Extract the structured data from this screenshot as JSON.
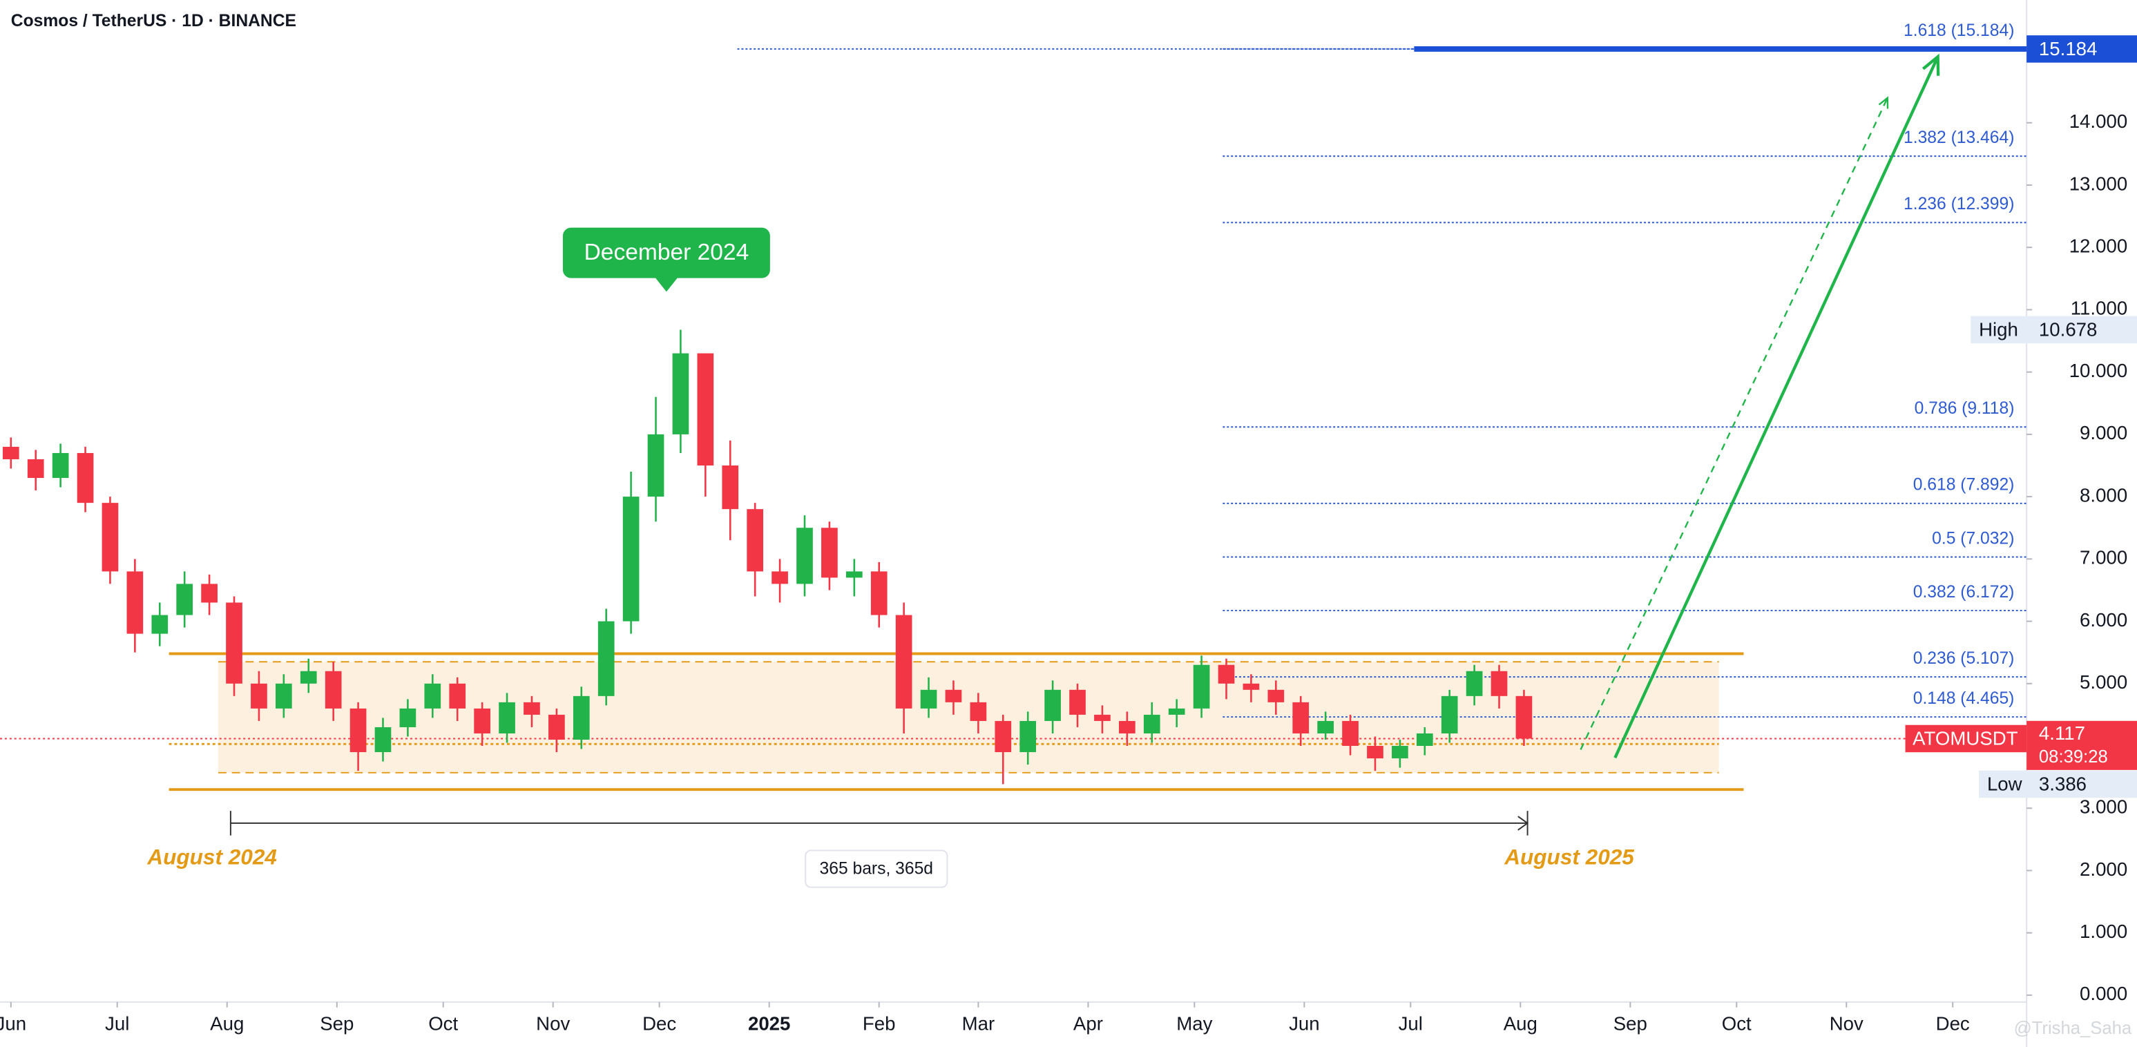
{
  "chart_data": {
    "type": "candlestick",
    "title": "Cosmos / TetherUS · 1D · BINANCE",
    "watermark": "@Trisha_Saha",
    "up_color": "#22b34a",
    "down_color": "#f23645",
    "xlim": [
      -3.08,
      568.85
    ],
    "ylim": [
      -0.11,
      15.97
    ],
    "grid": false,
    "xticks": [
      {
        "value": 0,
        "label": "Jun"
      },
      {
        "value": 30,
        "label": "Jul"
      },
      {
        "value": 61,
        "label": "Aug"
      },
      {
        "value": 92,
        "label": "Sep"
      },
      {
        "value": 122,
        "label": "Oct"
      },
      {
        "value": 153,
        "label": "Nov"
      },
      {
        "value": 183,
        "label": "Dec"
      },
      {
        "value": 214,
        "label": "2025",
        "bold": true
      },
      {
        "value": 245,
        "label": "Feb"
      },
      {
        "value": 273,
        "label": "Mar"
      },
      {
        "value": 304,
        "label": "Apr"
      },
      {
        "value": 334,
        "label": "May"
      },
      {
        "value": 365,
        "label": "Jun"
      },
      {
        "value": 395,
        "label": "Jul"
      },
      {
        "value": 426,
        "label": "Aug"
      },
      {
        "value": 457,
        "label": "Sep"
      },
      {
        "value": 487,
        "label": "Oct"
      },
      {
        "value": 518,
        "label": "Nov"
      },
      {
        "value": 548,
        "label": "Dec"
      }
    ],
    "yticks": [
      {
        "value": 0,
        "label": "0.000"
      },
      {
        "value": 1,
        "label": "1.000"
      },
      {
        "value": 2,
        "label": "2.000"
      },
      {
        "value": 3,
        "label": "3.000"
      },
      {
        "value": 5,
        "label": "5.000"
      },
      {
        "value": 6,
        "label": "6.000"
      },
      {
        "value": 7,
        "label": "7.000"
      },
      {
        "value": 8,
        "label": "8.000"
      },
      {
        "value": 9,
        "label": "9.000"
      },
      {
        "value": 10,
        "label": "10.000"
      },
      {
        "value": 11,
        "label": "11.000"
      },
      {
        "value": 12,
        "label": "12.000"
      },
      {
        "value": 13,
        "label": "13.000"
      },
      {
        "value": 14,
        "label": "14.000"
      }
    ],
    "candles": {
      "x": [
        0,
        7,
        14,
        21,
        28,
        35,
        42,
        49,
        56,
        63,
        70,
        77,
        84,
        91,
        98,
        105,
        112,
        119,
        126,
        133,
        140,
        147,
        154,
        161,
        168,
        175,
        182,
        189,
        196,
        203,
        210,
        217,
        224,
        231,
        238,
        245,
        252,
        259,
        266,
        273,
        280,
        287,
        294,
        301,
        308,
        315,
        322,
        329,
        336,
        343,
        350,
        357,
        364,
        371,
        378,
        385,
        392,
        399,
        406,
        413,
        420,
        427
      ],
      "open": [
        8.8,
        8.6,
        8.3,
        8.7,
        7.9,
        6.8,
        5.8,
        6.1,
        6.6,
        6.3,
        5.0,
        4.6,
        5.0,
        5.2,
        4.6,
        3.9,
        4.3,
        4.6,
        5.0,
        4.6,
        4.2,
        4.7,
        4.5,
        4.1,
        4.8,
        6.0,
        8.0,
        9.0,
        10.3,
        8.5,
        7.8,
        6.8,
        6.6,
        7.5,
        6.7,
        6.8,
        6.1,
        4.6,
        4.9,
        4.7,
        4.4,
        3.9,
        4.4,
        4.9,
        4.5,
        4.4,
        4.2,
        4.5,
        4.6,
        5.3,
        5.0,
        4.9,
        4.7,
        4.2,
        4.4,
        4.0,
        3.8,
        4.0,
        4.2,
        4.8,
        5.2,
        4.8
      ],
      "high": [
        8.95,
        8.75,
        8.85,
        8.8,
        8.0,
        7.0,
        6.3,
        6.8,
        6.75,
        6.4,
        5.2,
        5.15,
        5.4,
        5.35,
        4.7,
        4.45,
        4.75,
        5.15,
        5.1,
        4.7,
        4.85,
        4.8,
        4.6,
        4.95,
        6.2,
        8.4,
        9.6,
        10.678,
        10.1,
        8.9,
        7.9,
        7.0,
        7.7,
        7.6,
        7.0,
        6.95,
        6.3,
        5.1,
        5.05,
        4.85,
        4.5,
        4.55,
        5.05,
        5.0,
        4.65,
        4.55,
        4.7,
        4.75,
        5.45,
        5.4,
        5.15,
        5.05,
        4.8,
        4.55,
        4.5,
        4.15,
        4.1,
        4.3,
        4.9,
        5.3,
        5.3,
        4.9
      ],
      "low": [
        8.45,
        8.1,
        8.15,
        7.75,
        6.6,
        5.5,
        5.6,
        5.9,
        6.1,
        4.8,
        4.4,
        4.45,
        4.85,
        4.4,
        3.6,
        3.75,
        4.15,
        4.45,
        4.4,
        4.0,
        4.05,
        4.3,
        3.9,
        3.95,
        4.65,
        5.8,
        7.6,
        8.7,
        8.0,
        7.3,
        6.4,
        6.3,
        6.4,
        6.5,
        6.4,
        5.9,
        4.2,
        4.45,
        4.5,
        4.2,
        3.386,
        3.7,
        4.2,
        4.3,
        4.2,
        4.0,
        4.05,
        4.3,
        4.45,
        4.75,
        4.7,
        4.5,
        4.0,
        4.1,
        3.85,
        3.6,
        3.65,
        3.85,
        4.05,
        4.65,
        4.6,
        4.0
      ],
      "close": [
        8.6,
        8.3,
        8.7,
        7.9,
        6.8,
        5.8,
        6.1,
        6.6,
        6.3,
        5.0,
        4.6,
        5.0,
        5.2,
        4.6,
        3.9,
        4.3,
        4.6,
        5.0,
        4.6,
        4.2,
        4.7,
        4.5,
        4.1,
        4.8,
        6.0,
        8.0,
        9.0,
        10.3,
        8.5,
        7.8,
        6.8,
        6.6,
        7.5,
        6.7,
        6.8,
        6.1,
        4.6,
        4.9,
        4.7,
        4.4,
        3.9,
        4.4,
        4.9,
        4.5,
        4.4,
        4.2,
        4.5,
        4.6,
        5.3,
        5.0,
        4.9,
        4.7,
        4.2,
        4.4,
        4.0,
        3.8,
        4.0,
        4.2,
        4.8,
        5.2,
        4.8,
        4.117
      ]
    },
    "fib_start": 342,
    "fib_levels": [
      {
        "value": 15.184,
        "label": "1.618 (15.184)"
      },
      {
        "value": 13.464,
        "label": "1.382 (13.464)"
      },
      {
        "value": 12.399,
        "label": "1.236 (12.399)"
      },
      {
        "value": 9.118,
        "label": "0.786 (9.118)"
      },
      {
        "value": 7.892,
        "label": "0.618 (7.892)"
      },
      {
        "value": 7.032,
        "label": "0.5 (7.032)"
      },
      {
        "value": 6.172,
        "label": "0.382 (6.172)"
      },
      {
        "value": 5.107,
        "label": "0.236 (5.107)"
      },
      {
        "value": 4.465,
        "label": "0.148 (4.465)"
      }
    ],
    "target": {
      "value": 15.184,
      "start": 396,
      "dotted_start": 205
    },
    "range": {
      "start": 44.6,
      "end": 489,
      "inner_start": 58.5,
      "inner_end": 482,
      "upper": 5.48,
      "lower": 3.3,
      "inner_upper": 5.35,
      "inner_lower": 3.57,
      "mid": 4.03
    },
    "date_range": {
      "start": 62,
      "end": 428,
      "y": 2.76,
      "label": "365 bars, 365d"
    },
    "annotations": [
      {
        "text": "August 2024",
        "x": 38.5,
        "y": 2.19
      },
      {
        "text": "August 2025",
        "x": 421.5,
        "y": 2.19
      }
    ],
    "callout": {
      "text": "December 2024",
      "x": 185,
      "y": 11.07
    },
    "projections": [
      {
        "style": "solid",
        "from": [
          452.7,
          3.81
        ],
        "to": [
          543.8,
          15.06
        ]
      },
      {
        "style": "dashed",
        "from": [
          443,
          3.94
        ],
        "to": [
          529.6,
          14.4
        ]
      }
    ],
    "markers": {
      "high": {
        "label": "High",
        "value": 10.678
      },
      "low": {
        "label": "Low",
        "value": 3.386
      },
      "last": {
        "label": "ATOMUSDT",
        "value": 4.117,
        "countdown": "08:39:28"
      }
    }
  }
}
